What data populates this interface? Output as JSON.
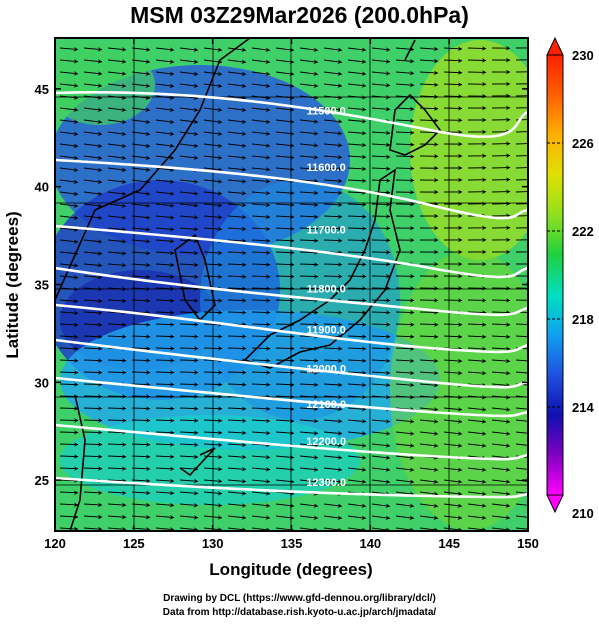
{
  "title": "MSM 03Z29Mar2026 (200.0hPa)",
  "map": {
    "xlabel": "Longitude (degrees)",
    "ylabel": "Latitude  (degrees)",
    "lon_range": [
      120,
      150
    ],
    "lat_range": [
      22.4,
      47.6
    ],
    "lon_ticks": [
      120,
      125,
      130,
      135,
      140,
      145,
      150
    ],
    "lat_ticks": [
      25,
      30,
      35,
      40,
      45
    ],
    "field": "temperature (shaded)",
    "contour_field": "geopotential height",
    "contour_labels": [
      {
        "text": "11500.0",
        "lon": 137.2,
        "lat": 43.7
      },
      {
        "text": "11600.0",
        "lon": 137.2,
        "lat": 40.8
      },
      {
        "text": "11700.0",
        "lon": 137.2,
        "lat": 37.6
      },
      {
        "text": "11800.0",
        "lon": 137.2,
        "lat": 34.6
      },
      {
        "text": "11900.0",
        "lon": 137.2,
        "lat": 32.5
      },
      {
        "text": "12000.0",
        "lon": 137.2,
        "lat": 30.5
      },
      {
        "text": "12100.0",
        "lon": 137.2,
        "lat": 28.7
      },
      {
        "text": "12200.0",
        "lon": 137.2,
        "lat": 26.8
      },
      {
        "text": "12300.0",
        "lon": 137.2,
        "lat": 24.7
      }
    ]
  },
  "colorbar": {
    "min": 210,
    "max": 230,
    "tick_labels": [
      "230",
      "226",
      "222",
      "218",
      "214",
      "210"
    ],
    "colors": [
      "#ff00ff",
      "#8000c0",
      "#1010b0",
      "#2050e0",
      "#10a0f0",
      "#00e0c0",
      "#20d040",
      "#90e020",
      "#e0e000",
      "#ffb000",
      "#ff6000",
      "#ff2000"
    ]
  },
  "credits": {
    "line1": "Drawing by DCL (https://www.gfd-dennou.org/library/dcl/)",
    "line2": "Data from http://database.rish.kyoto-u.ac.jp/arch/jmadata/"
  }
}
